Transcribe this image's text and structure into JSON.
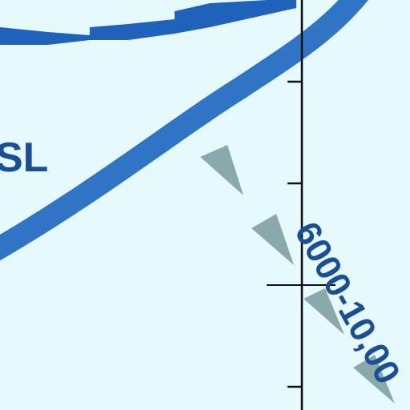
{
  "map": {
    "background_color": "#e6f9fd",
    "labels": {
      "partial_left": "SL",
      "altitude_band": "6000-10,00"
    },
    "colors": {
      "airway": "#2f74c5",
      "boundary": "#1f62bc",
      "label": "#1a4f96",
      "arrow": "#8aa9ad",
      "axis": "#111111"
    },
    "icons": {
      "route_arrow": "route-arrow-icon",
      "fix_marker": "fix-crosshair-icon"
    }
  }
}
